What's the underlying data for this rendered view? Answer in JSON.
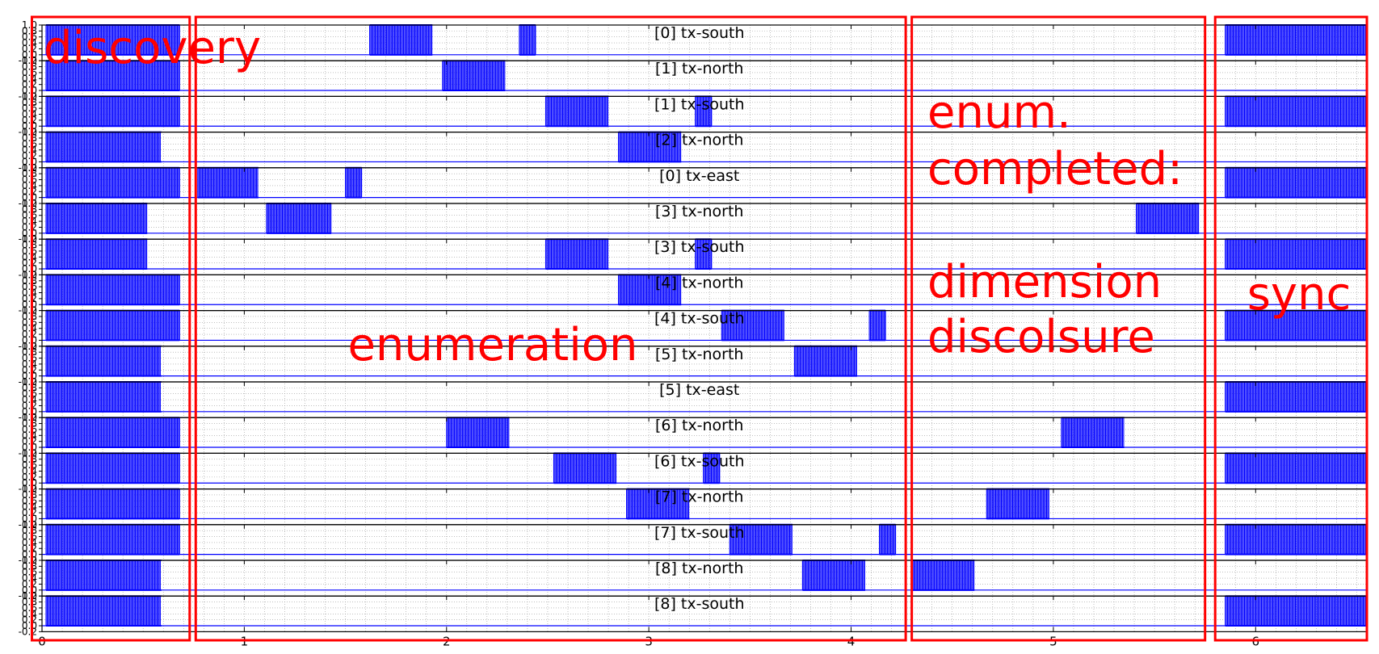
{
  "chart_data": {
    "type": "line",
    "xlim": [
      0,
      6.55
    ],
    "ylim": [
      -0.2,
      1.0
    ],
    "y_ticks": [
      "1.0",
      "0.8",
      "0.6",
      "0.4",
      "0.2",
      "0.0",
      "-0.2"
    ],
    "x_ticks": [
      0,
      1,
      2,
      3,
      4,
      5,
      6
    ],
    "grid": true,
    "subplots": [
      {
        "title": "[0] tx-south",
        "bursts": [
          [
            0.02,
            0.68
          ],
          [
            1.62,
            1.93
          ],
          [
            2.36,
            2.44
          ],
          [
            5.85,
            6.55
          ]
        ]
      },
      {
        "title": "[1] tx-north",
        "bursts": [
          [
            0.02,
            0.68
          ],
          [
            1.98,
            2.29
          ]
        ]
      },
      {
        "title": "[1] tx-south",
        "bursts": [
          [
            0.02,
            0.68
          ],
          [
            2.49,
            2.8
          ],
          [
            3.23,
            3.31
          ],
          [
            5.85,
            6.55
          ]
        ]
      },
      {
        "title": "[2] tx-north",
        "bursts": [
          [
            0.02,
            0.59
          ],
          [
            2.85,
            3.16
          ]
        ]
      },
      {
        "title": "[0] tx-east",
        "bursts": [
          [
            0.02,
            0.68
          ],
          [
            0.77,
            1.07
          ],
          [
            1.5,
            1.58
          ],
          [
            5.85,
            6.55
          ]
        ]
      },
      {
        "title": "[3] tx-north",
        "bursts": [
          [
            0.02,
            0.52
          ],
          [
            1.11,
            1.43
          ],
          [
            5.41,
            5.72
          ]
        ]
      },
      {
        "title": "[3] tx-south",
        "bursts": [
          [
            0.02,
            0.52
          ],
          [
            2.49,
            2.8
          ],
          [
            3.23,
            3.31
          ],
          [
            5.85,
            6.55
          ]
        ]
      },
      {
        "title": "[4] tx-north",
        "bursts": [
          [
            0.02,
            0.68
          ],
          [
            2.85,
            3.16
          ]
        ]
      },
      {
        "title": "[4] tx-south",
        "bursts": [
          [
            0.02,
            0.68
          ],
          [
            3.36,
            3.67
          ],
          [
            4.09,
            4.17
          ],
          [
            5.85,
            6.55
          ]
        ]
      },
      {
        "title": "[5] tx-north",
        "bursts": [
          [
            0.02,
            0.59
          ],
          [
            3.72,
            4.03
          ]
        ]
      },
      {
        "title": "[5] tx-east",
        "bursts": [
          [
            0.02,
            0.59
          ],
          [
            5.85,
            6.55
          ]
        ]
      },
      {
        "title": "[6] tx-north",
        "bursts": [
          [
            0.02,
            0.68
          ],
          [
            2.0,
            2.31
          ],
          [
            5.04,
            5.35
          ]
        ]
      },
      {
        "title": "[6] tx-south",
        "bursts": [
          [
            0.02,
            0.68
          ],
          [
            2.53,
            2.84
          ],
          [
            3.27,
            3.35
          ],
          [
            5.85,
            6.55
          ]
        ]
      },
      {
        "title": "[7] tx-north",
        "bursts": [
          [
            0.02,
            0.68
          ],
          [
            2.89,
            3.2
          ],
          [
            4.67,
            4.98
          ]
        ]
      },
      {
        "title": "[7] tx-south",
        "bursts": [
          [
            0.02,
            0.68
          ],
          [
            3.4,
            3.71
          ],
          [
            4.14,
            4.22
          ],
          [
            5.85,
            6.55
          ]
        ]
      },
      {
        "title": "[8] tx-north",
        "bursts": [
          [
            0.02,
            0.59
          ],
          [
            3.76,
            4.07
          ],
          [
            4.3,
            4.61
          ]
        ]
      },
      {
        "title": "[8] tx-south",
        "bursts": [
          [
            0.02,
            0.59
          ],
          [
            5.85,
            6.55
          ]
        ]
      }
    ],
    "annotations": [
      {
        "lines": [
          "discovery"
        ],
        "x_range": [
          -0.05,
          0.73
        ]
      },
      {
        "lines": [
          "enumeration"
        ],
        "x_range": [
          0.76,
          4.27
        ]
      },
      {
        "lines": [
          "enum.",
          "completed:",
          "",
          "dimension",
          "discolsure"
        ],
        "x_range": [
          4.3,
          5.75
        ]
      },
      {
        "lines": [
          "sync"
        ],
        "x_range": [
          5.8,
          6.55
        ]
      }
    ],
    "colors": {
      "signal": "#0000ff",
      "annotation": "#ff0000",
      "grid": "#999999"
    }
  }
}
